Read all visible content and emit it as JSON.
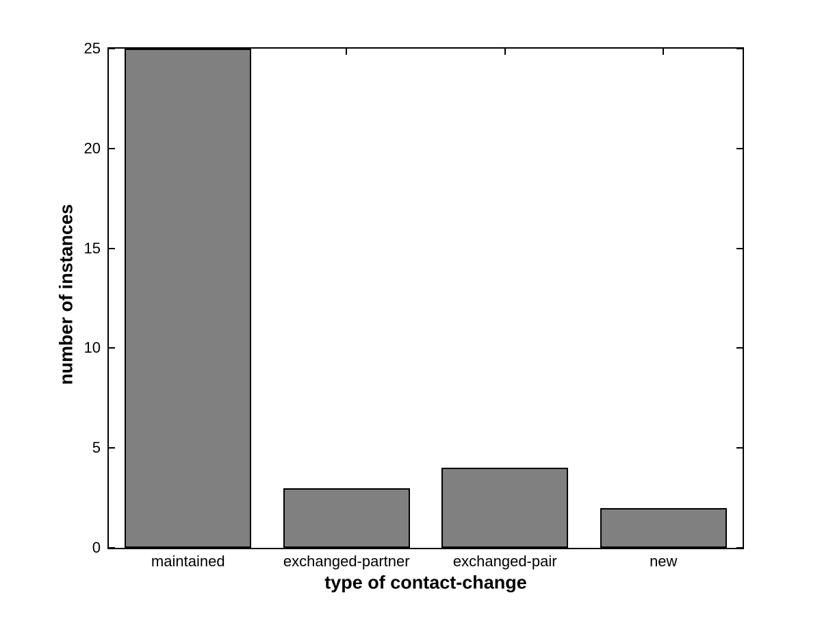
{
  "chart_data": {
    "type": "bar",
    "categories": [
      "maintained",
      "exchanged-partner",
      "exchanged-pair",
      "new"
    ],
    "values": [
      25,
      3,
      4,
      2
    ],
    "xlabel": "type of contact-change",
    "ylabel": "number of instances",
    "ylim": [
      0,
      25
    ],
    "yticks": [
      0,
      5,
      10,
      15,
      20,
      25
    ],
    "bar_width_fraction": 0.8,
    "bar_fill": "#808080",
    "bar_edge": "#000000",
    "axis_color": "#000000",
    "background": "#ffffff",
    "grid": false,
    "legend": null,
    "ticks_direction": "in",
    "box": true
  }
}
